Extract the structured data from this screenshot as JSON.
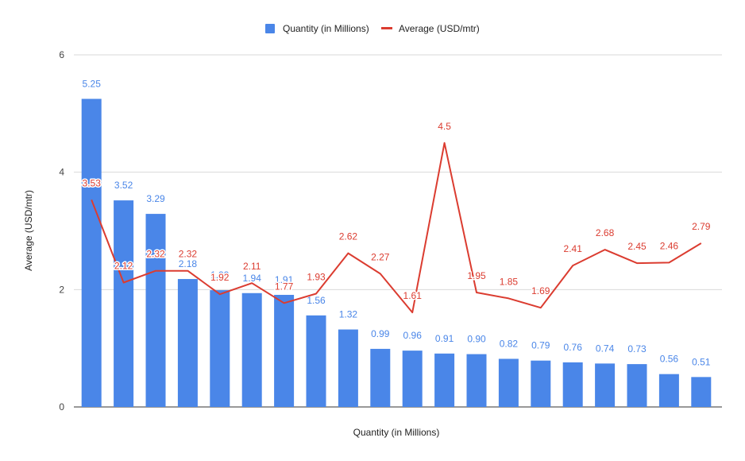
{
  "chart_data": {
    "type": "bar",
    "title": "",
    "xlabel": "Quantity (in Millions)",
    "ylabel": "Average (USD/mtr)",
    "ylim": [
      0,
      6
    ],
    "yticks": [
      0,
      2,
      4,
      6
    ],
    "grid": true,
    "legend_position": "top",
    "series": [
      {
        "name": "Quantity (in Millions)",
        "type": "bar",
        "color": "#4A86E8",
        "values": [
          5.25,
          3.52,
          3.29,
          2.18,
          1.99,
          1.94,
          1.91,
          1.56,
          1.32,
          0.99,
          0.96,
          0.91,
          0.9,
          0.82,
          0.79,
          0.76,
          0.74,
          0.73,
          0.56,
          0.51
        ],
        "labels": [
          "5.25",
          "3.52",
          "3.29",
          "2.18",
          "1.99",
          "1.94",
          "1.91",
          "1.56",
          "1.32",
          "0.99",
          "0.96",
          "0.91",
          "0.90",
          "0.82",
          "0.79",
          "0.76",
          "0.74",
          "0.73",
          "0.56",
          "0.51"
        ]
      },
      {
        "name": "Average (USD/mtr)",
        "type": "line",
        "color": "#DB3C30",
        "values": [
          3.53,
          2.12,
          2.32,
          2.32,
          1.92,
          2.11,
          1.77,
          1.93,
          2.62,
          2.27,
          1.61,
          4.5,
          1.95,
          1.85,
          1.69,
          2.41,
          2.68,
          2.45,
          2.46,
          2.79
        ],
        "labels": [
          "3.53",
          "2.12",
          "2.32",
          "2.32",
          "1.92",
          "2.11",
          "1.77",
          "1.93",
          "2.62",
          "2.27",
          "1.61",
          "4.5",
          "1.95",
          "1.85",
          "1.69",
          "2.41",
          "2.68",
          "2.45",
          "2.46",
          "2.79"
        ]
      }
    ]
  }
}
